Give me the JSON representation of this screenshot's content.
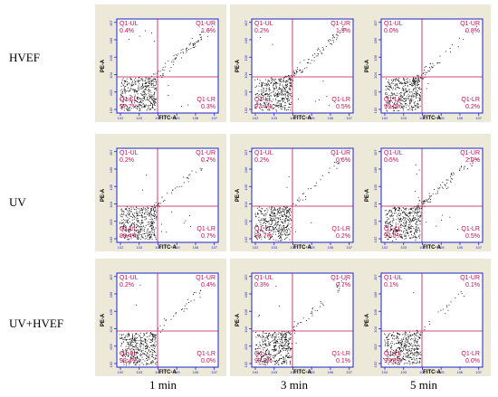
{
  "row_labels": [
    "HVEF",
    "UV",
    "UV+HVEF"
  ],
  "col_labels": [
    "1 min",
    "3 min",
    "5 min"
  ],
  "colors": {
    "panel_bg": "#ece9d8",
    "axis": "#1e22c8",
    "gate": "#c01050",
    "dots": "#000000"
  },
  "chart_data": [
    {
      "type": "scatter",
      "row": "HVEF",
      "time": "1 min",
      "xlabel": "FITC-A",
      "ylabel": "PE-A",
      "quadrants": {
        "Q1-UL": "0.4%",
        "Q1-UR": "1.6%",
        "Q1-LR": "0.3%",
        "Q1-LL": "97.7%"
      }
    },
    {
      "type": "scatter",
      "row": "HVEF",
      "time": "3 min",
      "xlabel": "FITC-A",
      "ylabel": "PE-A",
      "quadrants": {
        "Q1-UL": "0.2%",
        "Q1-UR": "1.9%",
        "Q1-LR": "0.5%",
        "Q1-LL": "97.4%"
      }
    },
    {
      "type": "scatter",
      "row": "HVEF",
      "time": "5 min",
      "xlabel": "FITC-A",
      "ylabel": "PE-A",
      "quadrants": {
        "Q1-UL": "0.0%",
        "Q1-UR": "0.8%",
        "Q1-LR": "0.2%",
        "Q1-LL": "99.0%"
      }
    },
    {
      "type": "scatter",
      "row": "UV",
      "time": "1 min",
      "xlabel": "FITC-A",
      "ylabel": "PE-A",
      "quadrants": {
        "Q1-UL": "0.2%",
        "Q1-UR": "0.7%",
        "Q1-LR": "0.7%",
        "Q1-LL": "98.4%"
      }
    },
    {
      "type": "scatter",
      "row": "UV",
      "time": "3 min",
      "xlabel": "FITC-A",
      "ylabel": "PE-A",
      "quadrants": {
        "Q1-UL": "0.2%",
        "Q1-UR": "0.6%",
        "Q1-LR": "0.2%",
        "Q1-LL": "98.7%"
      }
    },
    {
      "type": "scatter",
      "row": "UV",
      "time": "5 min",
      "xlabel": "FITC-A",
      "ylabel": "PE-A",
      "quadrants": {
        "Q1-UL": "0.5%",
        "Q1-UR": "2.0%",
        "Q1-LR": "0.5%",
        "Q1-LL": "97.0%"
      }
    },
    {
      "type": "scatter",
      "row": "UV+HVEF",
      "time": "1 min",
      "xlabel": "FITC-A",
      "ylabel": "PE-A",
      "quadrants": {
        "Q1-UL": "0.2%",
        "Q1-UR": "0.4%",
        "Q1-LR": "0.0%",
        "Q1-LL": "99.4%"
      }
    },
    {
      "type": "scatter",
      "row": "UV+HVEF",
      "time": "3 min",
      "xlabel": "FITC-A",
      "ylabel": "PE-A",
      "quadrants": {
        "Q1-UL": "0.3%",
        "Q1-UR": "0.7%",
        "Q1-LR": "0.1%",
        "Q1-LL": "98.9%"
      }
    },
    {
      "type": "scatter",
      "row": "UV+HVEF",
      "time": "5 min",
      "xlabel": "FITC-A",
      "ylabel": "PE-A",
      "quadrants": {
        "Q1-UL": "0.1%",
        "Q1-UR": "0.1%",
        "Q1-LR": "0.0%",
        "Q1-LL": "99.8%"
      }
    }
  ]
}
